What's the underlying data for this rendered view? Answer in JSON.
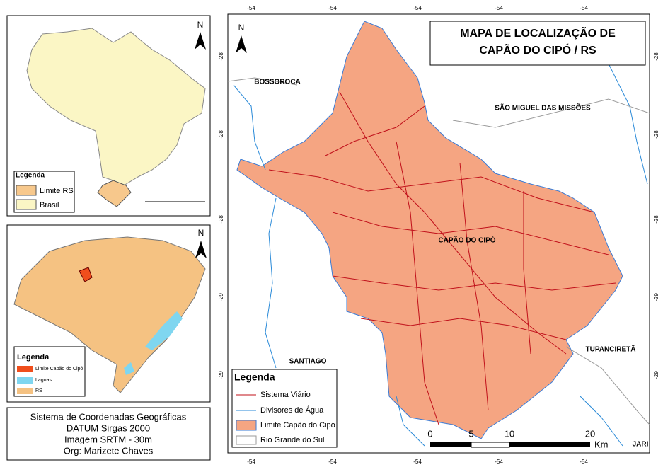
{
  "main_map": {
    "title": [
      "MAPA DE LOCALIZAÇÃO DE",
      "CAPÃO DO CIPÓ / RS"
    ],
    "north": "N",
    "places": [
      "BOSSOROCA",
      "SÃO MIGUEL DAS MISSÕES",
      "CAPÃO DO CIPÓ",
      "SANTIAGO",
      "TUPANCIRETÃ",
      "JARI"
    ],
    "legend": {
      "title": "Legenda",
      "items": [
        "Sistema Viário",
        "Divisores de Água",
        "Limite Capão do Cipó",
        "Rio Grande do Sul"
      ]
    },
    "scale": {
      "labels": [
        "0",
        "5",
        "10",
        "20"
      ],
      "unit": "Km"
    },
    "coordinates": {
      "top": [
        "-54",
        "-54",
        "-54",
        "-54",
        "-54"
      ],
      "bottom": [
        "-54",
        "-54",
        "-54",
        "-54",
        "-54"
      ],
      "left": [
        "-28",
        "-28",
        "-28",
        "-29",
        "-29"
      ],
      "right": [
        "-28",
        "-28",
        "-28",
        "-29",
        "-29"
      ]
    }
  },
  "inset_brazil": {
    "north": "N",
    "legend": {
      "title": "Legenda",
      "items": [
        "Limite RS",
        "Brasil"
      ]
    }
  },
  "inset_rs": {
    "north": "N",
    "legend": {
      "title": "Legenda",
      "items": [
        "Limite Capão do Cipó",
        "Lagoas",
        "RS"
      ]
    }
  },
  "info": {
    "lines": [
      "Sistema de Coordenadas Geográficas",
      "DATUM Sirgas 2000",
      "Imagem SRTM - 30m",
      "Org: Marizete Chaves"
    ]
  }
}
